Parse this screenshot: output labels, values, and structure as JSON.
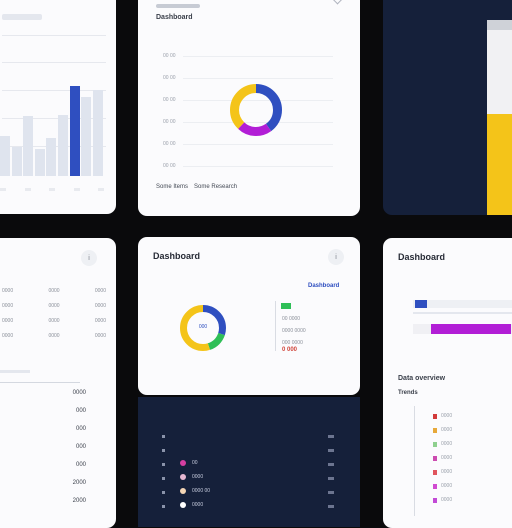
{
  "theme": {
    "bg": "#0a0a0c",
    "card_white": "#fbfbfd",
    "card_navy": "#15203a",
    "blue": "#2f4fc0",
    "yellow": "#f4c419",
    "magenta": "#b21ed6",
    "green": "#2fbf57",
    "light_bar": "#dfe4ee"
  },
  "top_left": {
    "heading": "",
    "bars": [
      0.42,
      0.3,
      0.62,
      0.28,
      0.4,
      0.64,
      0.94,
      0.82,
      0.9
    ]
  },
  "top_middle": {
    "title": "Dashboard",
    "axis_labels": [
      "00 00",
      "00 00",
      "00 00",
      "00 00",
      "00 00",
      "00 00"
    ],
    "legend": [
      "Some Items",
      "Some Research"
    ],
    "donut": {
      "segments": [
        {
          "color": "#2f4fc0",
          "value": 0.4
        },
        {
          "color": "#b21ed6",
          "value": 0.22
        },
        {
          "color": "#f4c419",
          "value": 0.38
        }
      ]
    }
  },
  "top_right": {
    "bar_fill": 0.52
  },
  "mid_left": {
    "rows": [
      [
        "0000",
        "0000",
        "0000"
      ],
      [
        "0000",
        "0000",
        "0000"
      ],
      [
        "0000",
        "0000",
        "0000"
      ],
      [
        "0000",
        "0000",
        "0000"
      ]
    ],
    "values": [
      "0000",
      "000",
      "000",
      "000",
      "000",
      "2000",
      "2000"
    ]
  },
  "mid_middle": {
    "title": "Dashboard",
    "legend_title": "Dashboard",
    "center_label": "000",
    "stats": [
      "00 0000",
      "0000 0000",
      "000 0000"
    ],
    "footer_value": "0 000",
    "donut": {
      "segments": [
        {
          "color": "#2f4fc0",
          "value": 0.3
        },
        {
          "color": "#2fbf57",
          "value": 0.15
        },
        {
          "color": "#f4c419",
          "value": 0.55
        }
      ]
    }
  },
  "mid_right": {
    "title": "Dashboard",
    "section_title": "Data overview",
    "section_sub": "Trends",
    "blue_fill": 0.11,
    "magenta_fill": 0.73,
    "legend": [
      {
        "color": "#d23a3a",
        "label": "0000"
      },
      {
        "color": "#e7a93a",
        "label": "0000"
      },
      {
        "color": "#8ed08e",
        "label": "0000"
      },
      {
        "color": "#cc4bb0",
        "label": "0000"
      },
      {
        "color": "#e0555e",
        "label": "0000"
      },
      {
        "color": "#d14bd1",
        "label": "0000"
      },
      {
        "color": "#c24ad6",
        "label": "0000"
      }
    ]
  },
  "bottom_middle": {
    "items": [
      {
        "color": "#d63fa1",
        "label": "00"
      },
      {
        "color": "#e6b7d2",
        "label": "0000"
      },
      {
        "color": "#f3d5b5",
        "label": "0000 00"
      },
      {
        "color": "#ffffff",
        "label": "0000"
      }
    ]
  }
}
